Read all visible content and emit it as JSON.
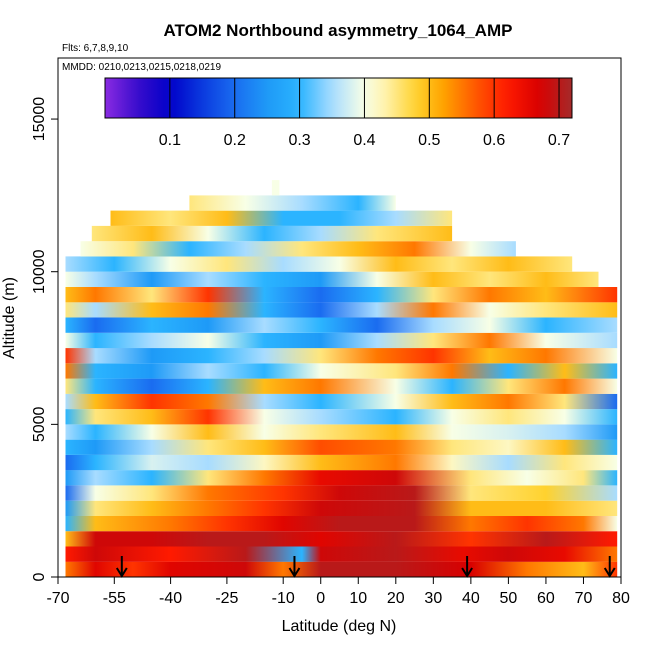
{
  "chart_data": {
    "type": "heatmap",
    "title": "ATOM2 Northbound asymmetry_1064_AMP",
    "flights_label": "Flts: 6,7,8,9,10",
    "dates_label": "MMDD: 0210,0213,0215,0218,0219",
    "xlabel": "Latitude (deg N)",
    "ylabel": "Altitude (m)",
    "xlim": [
      -70,
      80
    ],
    "ylim": [
      0,
      17000
    ],
    "x_ticks": [
      -70,
      -55,
      -40,
      -25,
      -10,
      0,
      10,
      20,
      30,
      40,
      50,
      60,
      70,
      80
    ],
    "x_tick_labels": [
      "-70",
      "-55",
      "-40",
      "-25",
      "-10",
      "0",
      "10",
      "20",
      "30",
      "40",
      "50",
      "60",
      "70",
      "80"
    ],
    "y_ticks": [
      0,
      5000,
      10000,
      15000
    ],
    "y_tick_labels": [
      "0",
      "5000",
      "10000",
      "15000"
    ],
    "colorbar": {
      "range": [
        0.0,
        0.72
      ],
      "ticks": [
        0.1,
        0.2,
        0.3,
        0.4,
        0.5,
        0.6,
        0.7
      ],
      "tick_labels": [
        "0.1",
        "0.2",
        "0.3",
        "0.4",
        "0.5",
        "0.6",
        "0.7"
      ]
    },
    "profile_markers_lat": [
      -53,
      -7,
      39,
      77
    ],
    "layer_height_m": 500,
    "layers": [
      {
        "alt": 250,
        "lat_min": -68,
        "lat_max": 79,
        "knots": [
          [
            -68,
            0.55
          ],
          [
            -60,
            0.66
          ],
          [
            -50,
            0.6
          ],
          [
            -40,
            0.66
          ],
          [
            -20,
            0.68
          ],
          [
            -10,
            0.55
          ],
          [
            0,
            0.7
          ],
          [
            20,
            0.7
          ],
          [
            40,
            0.67
          ],
          [
            55,
            0.55
          ],
          [
            70,
            0.5
          ],
          [
            79,
            0.6
          ]
        ]
      },
      {
        "alt": 750,
        "lat_min": -68,
        "lat_max": 79,
        "knots": [
          [
            -68,
            0.62
          ],
          [
            -60,
            0.68
          ],
          [
            -40,
            0.62
          ],
          [
            -20,
            0.7
          ],
          [
            -5,
            0.3
          ],
          [
            0,
            0.68
          ],
          [
            20,
            0.7
          ],
          [
            38,
            0.65
          ],
          [
            50,
            0.68
          ],
          [
            65,
            0.65
          ],
          [
            79,
            0.55
          ]
        ]
      },
      {
        "alt": 1250,
        "lat_min": -68,
        "lat_max": 79,
        "knots": [
          [
            -68,
            0.5
          ],
          [
            -60,
            0.68
          ],
          [
            -45,
            0.68
          ],
          [
            -30,
            0.7
          ],
          [
            -15,
            0.7
          ],
          [
            0,
            0.66
          ],
          [
            20,
            0.7
          ],
          [
            40,
            0.6
          ],
          [
            60,
            0.7
          ],
          [
            79,
            0.62
          ]
        ]
      },
      {
        "alt": 1750,
        "lat_min": -68,
        "lat_max": 79,
        "knots": [
          [
            -68,
            0.3
          ],
          [
            -60,
            0.5
          ],
          [
            -40,
            0.55
          ],
          [
            -25,
            0.6
          ],
          [
            -10,
            0.66
          ],
          [
            5,
            0.7
          ],
          [
            25,
            0.7
          ],
          [
            40,
            0.55
          ],
          [
            55,
            0.6
          ],
          [
            70,
            0.55
          ],
          [
            79,
            0.4
          ]
        ]
      },
      {
        "alt": 2250,
        "lat_min": -68,
        "lat_max": 79,
        "knots": [
          [
            -68,
            0.25
          ],
          [
            -60,
            0.45
          ],
          [
            -45,
            0.5
          ],
          [
            -30,
            0.55
          ],
          [
            -15,
            0.6
          ],
          [
            0,
            0.68
          ],
          [
            25,
            0.7
          ],
          [
            40,
            0.5
          ],
          [
            60,
            0.5
          ],
          [
            79,
            0.45
          ]
        ]
      },
      {
        "alt": 2750,
        "lat_min": -68,
        "lat_max": 79,
        "knots": [
          [
            -68,
            0.2
          ],
          [
            -60,
            0.4
          ],
          [
            -45,
            0.45
          ],
          [
            -30,
            0.55
          ],
          [
            -10,
            0.6
          ],
          [
            5,
            0.68
          ],
          [
            25,
            0.7
          ],
          [
            40,
            0.45
          ],
          [
            60,
            0.48
          ],
          [
            79,
            0.35
          ]
        ]
      },
      {
        "alt": 3250,
        "lat_min": -68,
        "lat_max": 79,
        "knots": [
          [
            -68,
            0.25
          ],
          [
            -60,
            0.35
          ],
          [
            -45,
            0.3
          ],
          [
            -30,
            0.45
          ],
          [
            -15,
            0.55
          ],
          [
            0,
            0.65
          ],
          [
            20,
            0.68
          ],
          [
            40,
            0.45
          ],
          [
            55,
            0.4
          ],
          [
            70,
            0.45
          ],
          [
            79,
            0.3
          ]
        ]
      },
      {
        "alt": 3750,
        "lat_min": -68,
        "lat_max": 79,
        "knots": [
          [
            -68,
            0.2
          ],
          [
            -60,
            0.3
          ],
          [
            -45,
            0.38
          ],
          [
            -30,
            0.35
          ],
          [
            -15,
            0.42
          ],
          [
            0,
            0.5
          ],
          [
            20,
            0.55
          ],
          [
            35,
            0.42
          ],
          [
            50,
            0.35
          ],
          [
            65,
            0.45
          ],
          [
            79,
            0.4
          ]
        ]
      },
      {
        "alt": 4250,
        "lat_min": -68,
        "lat_max": 79,
        "knots": [
          [
            -68,
            0.3
          ],
          [
            -60,
            0.25
          ],
          [
            -45,
            0.35
          ],
          [
            -30,
            0.45
          ],
          [
            -15,
            0.5
          ],
          [
            0,
            0.58
          ],
          [
            20,
            0.55
          ],
          [
            35,
            0.45
          ],
          [
            50,
            0.42
          ],
          [
            65,
            0.5
          ],
          [
            79,
            0.3
          ]
        ]
      },
      {
        "alt": 4750,
        "lat_min": -68,
        "lat_max": 79,
        "knots": [
          [
            -68,
            0.35
          ],
          [
            -60,
            0.3
          ],
          [
            -45,
            0.4
          ],
          [
            -30,
            0.5
          ],
          [
            -15,
            0.4
          ],
          [
            0,
            0.45
          ],
          [
            20,
            0.5
          ],
          [
            35,
            0.4
          ],
          [
            50,
            0.38
          ],
          [
            65,
            0.35
          ],
          [
            79,
            0.25
          ]
        ]
      },
      {
        "alt": 5250,
        "lat_min": -68,
        "lat_max": 79,
        "knots": [
          [
            -68,
            0.3
          ],
          [
            -60,
            0.45
          ],
          [
            -45,
            0.5
          ],
          [
            -30,
            0.6
          ],
          [
            -15,
            0.4
          ],
          [
            0,
            0.35
          ],
          [
            20,
            0.3
          ],
          [
            35,
            0.4
          ],
          [
            50,
            0.45
          ],
          [
            65,
            0.4
          ],
          [
            79,
            0.3
          ]
        ]
      },
      {
        "alt": 5750,
        "lat_min": -68,
        "lat_max": 79,
        "knots": [
          [
            -68,
            0.35
          ],
          [
            -60,
            0.5
          ],
          [
            -45,
            0.6
          ],
          [
            -30,
            0.55
          ],
          [
            -15,
            0.35
          ],
          [
            0,
            0.3
          ],
          [
            20,
            0.4
          ],
          [
            35,
            0.5
          ],
          [
            50,
            0.55
          ],
          [
            65,
            0.45
          ],
          [
            79,
            0.2
          ]
        ]
      },
      {
        "alt": 6250,
        "lat_min": -68,
        "lat_max": 79,
        "knots": [
          [
            -68,
            0.45
          ],
          [
            -60,
            0.3
          ],
          [
            -45,
            0.2
          ],
          [
            -30,
            0.3
          ],
          [
            -15,
            0.5
          ],
          [
            0,
            0.55
          ],
          [
            20,
            0.4
          ],
          [
            35,
            0.3
          ],
          [
            50,
            0.45
          ],
          [
            65,
            0.55
          ],
          [
            79,
            0.4
          ]
        ]
      },
      {
        "alt": 6750,
        "lat_min": -68,
        "lat_max": 79,
        "knots": [
          [
            -68,
            0.55
          ],
          [
            -60,
            0.3
          ],
          [
            -45,
            0.25
          ],
          [
            -30,
            0.35
          ],
          [
            -15,
            0.3
          ],
          [
            0,
            0.4
          ],
          [
            20,
            0.45
          ],
          [
            35,
            0.55
          ],
          [
            50,
            0.3
          ],
          [
            65,
            0.5
          ],
          [
            79,
            0.3
          ]
        ]
      },
      {
        "alt": 7250,
        "lat_min": -68,
        "lat_max": 79,
        "knots": [
          [
            -68,
            0.6
          ],
          [
            -60,
            0.35
          ],
          [
            -45,
            0.25
          ],
          [
            -30,
            0.3
          ],
          [
            -15,
            0.35
          ],
          [
            0,
            0.45
          ],
          [
            15,
            0.55
          ],
          [
            30,
            0.6
          ],
          [
            45,
            0.5
          ],
          [
            60,
            0.55
          ],
          [
            79,
            0.4
          ]
        ]
      },
      {
        "alt": 7750,
        "lat_min": -68,
        "lat_max": 79,
        "knots": [
          [
            -68,
            0.4
          ],
          [
            -60,
            0.3
          ],
          [
            -45,
            0.35
          ],
          [
            -30,
            0.4
          ],
          [
            -15,
            0.3
          ],
          [
            0,
            0.25
          ],
          [
            15,
            0.35
          ],
          [
            30,
            0.45
          ],
          [
            45,
            0.55
          ],
          [
            60,
            0.4
          ],
          [
            79,
            0.35
          ]
        ]
      },
      {
        "alt": 8250,
        "lat_min": -68,
        "lat_max": 79,
        "knots": [
          [
            -68,
            0.3
          ],
          [
            -60,
            0.2
          ],
          [
            -45,
            0.3
          ],
          [
            -30,
            0.25
          ],
          [
            -15,
            0.35
          ],
          [
            0,
            0.3
          ],
          [
            15,
            0.2
          ],
          [
            30,
            0.35
          ],
          [
            45,
            0.4
          ],
          [
            60,
            0.3
          ],
          [
            79,
            0.35
          ]
        ]
      },
      {
        "alt": 8750,
        "lat_min": -68,
        "lat_max": 79,
        "knots": [
          [
            -68,
            0.45
          ],
          [
            -60,
            0.35
          ],
          [
            -45,
            0.5
          ],
          [
            -30,
            0.55
          ],
          [
            -15,
            0.3
          ],
          [
            0,
            0.2
          ],
          [
            15,
            0.35
          ],
          [
            30,
            0.55
          ],
          [
            45,
            0.4
          ],
          [
            60,
            0.45
          ],
          [
            79,
            0.5
          ]
        ]
      },
      {
        "alt": 9250,
        "lat_min": -68,
        "lat_max": 79,
        "knots": [
          [
            -68,
            0.5
          ],
          [
            -60,
            0.55
          ],
          [
            -45,
            0.45
          ],
          [
            -30,
            0.6
          ],
          [
            -15,
            0.3
          ],
          [
            0,
            0.2
          ],
          [
            15,
            0.3
          ],
          [
            30,
            0.45
          ],
          [
            45,
            0.55
          ],
          [
            60,
            0.5
          ],
          [
            79,
            0.6
          ]
        ]
      },
      {
        "alt": 9750,
        "lat_min": -68,
        "lat_max": 74,
        "knots": [
          [
            -68,
            0.4
          ],
          [
            -60,
            0.35
          ],
          [
            -45,
            0.25
          ],
          [
            -30,
            0.35
          ],
          [
            -15,
            0.3
          ],
          [
            0,
            0.25
          ],
          [
            15,
            0.4
          ],
          [
            30,
            0.5
          ],
          [
            45,
            0.45
          ],
          [
            60,
            0.5
          ],
          [
            74,
            0.45
          ]
        ]
      },
      {
        "alt": 10250,
        "lat_min": -68,
        "lat_max": 67,
        "knots": [
          [
            -68,
            0.35
          ],
          [
            -55,
            0.3
          ],
          [
            -40,
            0.4
          ],
          [
            -25,
            0.45
          ],
          [
            -10,
            0.35
          ],
          [
            5,
            0.4
          ],
          [
            20,
            0.5
          ],
          [
            35,
            0.45
          ],
          [
            50,
            0.5
          ],
          [
            67,
            0.45
          ]
        ]
      },
      {
        "alt": 10750,
        "lat_min": -64,
        "lat_max": 52,
        "knots": [
          [
            -64,
            0.4
          ],
          [
            -50,
            0.45
          ],
          [
            -35,
            0.3
          ],
          [
            -20,
            0.35
          ],
          [
            -5,
            0.45
          ],
          [
            10,
            0.5
          ],
          [
            25,
            0.55
          ],
          [
            40,
            0.4
          ],
          [
            52,
            0.35
          ]
        ]
      },
      {
        "alt": 11250,
        "lat_min": -61,
        "lat_max": 35,
        "knots": [
          [
            -61,
            0.45
          ],
          [
            -45,
            0.5
          ],
          [
            -30,
            0.4
          ],
          [
            -15,
            0.3
          ],
          [
            0,
            0.35
          ],
          [
            15,
            0.45
          ],
          [
            35,
            0.5
          ]
        ]
      },
      {
        "alt": 11750,
        "lat_min": -56,
        "lat_max": 35,
        "knots": [
          [
            -56,
            0.5
          ],
          [
            -40,
            0.45
          ],
          [
            -25,
            0.5
          ],
          [
            -10,
            0.3
          ],
          [
            5,
            0.3
          ],
          [
            20,
            0.35
          ],
          [
            35,
            0.45
          ]
        ]
      },
      {
        "alt": 12250,
        "lat_min": -35,
        "lat_max": 20,
        "knots": [
          [
            -35,
            0.45
          ],
          [
            -20,
            0.4
          ],
          [
            -5,
            0.35
          ],
          [
            10,
            0.3
          ],
          [
            20,
            0.4
          ]
        ]
      },
      {
        "alt": 12750,
        "lat_min": -13,
        "lat_max": -11,
        "knots": [
          [
            -13,
            0.4
          ],
          [
            -11,
            0.4
          ]
        ]
      }
    ]
  }
}
